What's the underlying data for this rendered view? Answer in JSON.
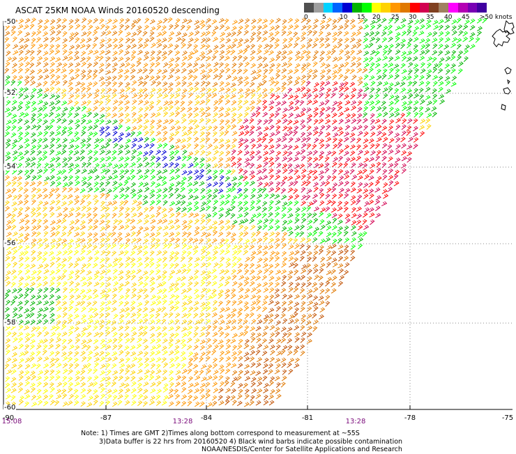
{
  "title": "ASCAT 25KM NOAA Winds 20160520 descending",
  "legend": {
    "colors": [
      "#505050",
      "#9e9e9e",
      "#00d2ff",
      "#0064ff",
      "#0000d2",
      "#00b400",
      "#00ff00",
      "#ffff00",
      "#ffd200",
      "#ff9600",
      "#e07800",
      "#ff0000",
      "#d20050",
      "#804020",
      "#a08060",
      "#ff00ff",
      "#b400b4",
      "#7800b4",
      "#4000a0"
    ],
    "labels": [
      "0",
      "5",
      "10",
      "15",
      "20",
      "25",
      "30",
      "35",
      "40",
      "45",
      ">50 knots"
    ]
  },
  "chart_data": {
    "type": "heatmap",
    "title": "ASCAT 25KM NOAA Winds 20160520 descending",
    "y_ticks": [
      "-50",
      "-52",
      "-54",
      "-56",
      "-58",
      "-60"
    ],
    "x_ticks": [
      "-90",
      "-87",
      "-84",
      "-81",
      "-78",
      "-75"
    ],
    "ylim": [
      -60,
      -50
    ],
    "xlim": [
      -90,
      -75
    ],
    "pass_times": [
      {
        "label": "15:08",
        "lon": -90
      },
      {
        "label": "13:28",
        "lon": -85.3
      },
      {
        "label": "13:28",
        "lon": -79.7
      }
    ],
    "wind_speed_units": "knots",
    "legend_range": [
      0,
      50
    ],
    "grid": true
  },
  "notes": [
    "Note: 1) Times are GMT 2)Times along bottom correspond to measurement at ~55S",
    "3)Data buffer is 22 hrs from 20160520 4) Black wind barbs indicate possible contamination",
    "NOAA/NESDIS/Center for Satellite Applications and Research"
  ]
}
